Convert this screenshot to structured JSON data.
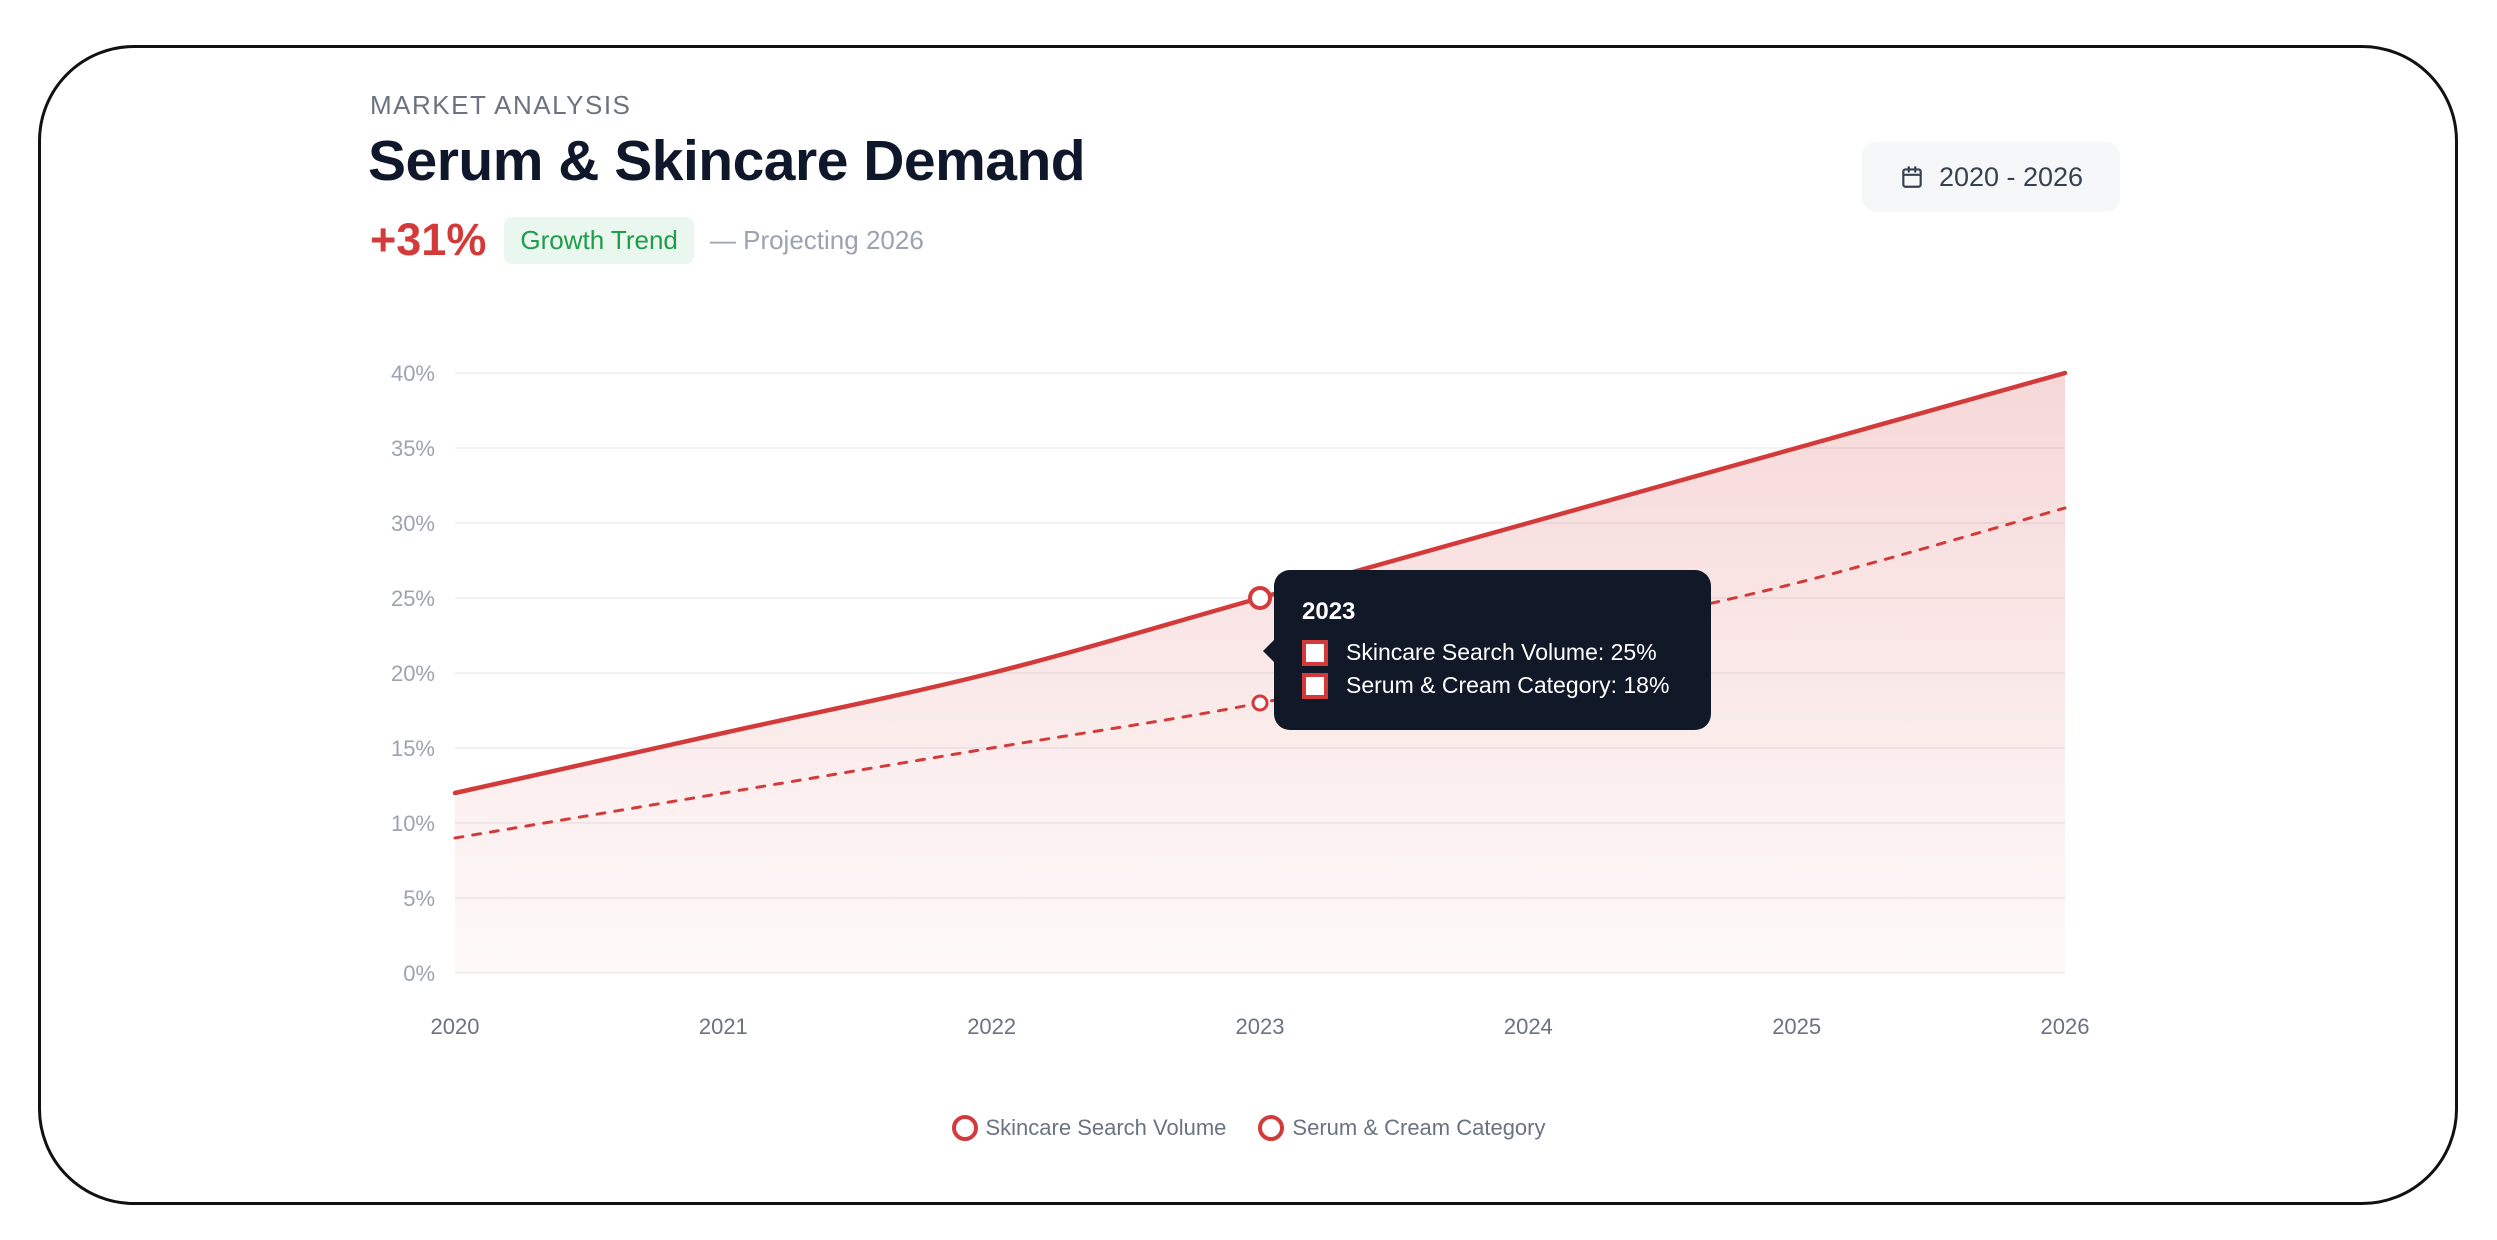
{
  "header": {
    "eyebrow": "MARKET ANALYSIS",
    "title": "Serum & Skincare Demand",
    "growth_value": "+31%",
    "growth_badge": "Growth Trend",
    "growth_note": "— Projecting 2026",
    "date_range": "2020 - 2026"
  },
  "colors": {
    "accent": "#d33b3b",
    "badge_bg": "#eaf7ee",
    "badge_text": "#1e9e4a",
    "tooltip_bg": "#111827"
  },
  "tooltip": {
    "title": "2023",
    "rows": [
      "Skincare Search Volume: 25%",
      "Serum & Cream Category: 18%"
    ]
  },
  "legend": [
    "Skincare Search Volume",
    "Serum & Cream Category"
  ],
  "chart_data": {
    "type": "area",
    "x": [
      "2020",
      "2021",
      "2022",
      "2023",
      "2024",
      "2025",
      "2026"
    ],
    "series": [
      {
        "name": "Skincare Search Volume",
        "values": [
          12,
          16,
          20,
          25,
          30,
          35,
          40
        ],
        "style": "solid",
        "filled": true
      },
      {
        "name": "Serum & Cream Category",
        "values": [
          9,
          12,
          15,
          18,
          22,
          26,
          31
        ],
        "style": "dashed",
        "filled": false
      }
    ],
    "y_ticks": [
      "0%",
      "5%",
      "10%",
      "15%",
      "20%",
      "25%",
      "30%",
      "35%",
      "40%"
    ],
    "ylim": [
      0,
      40
    ],
    "grid": true,
    "highlighted": "2023"
  }
}
